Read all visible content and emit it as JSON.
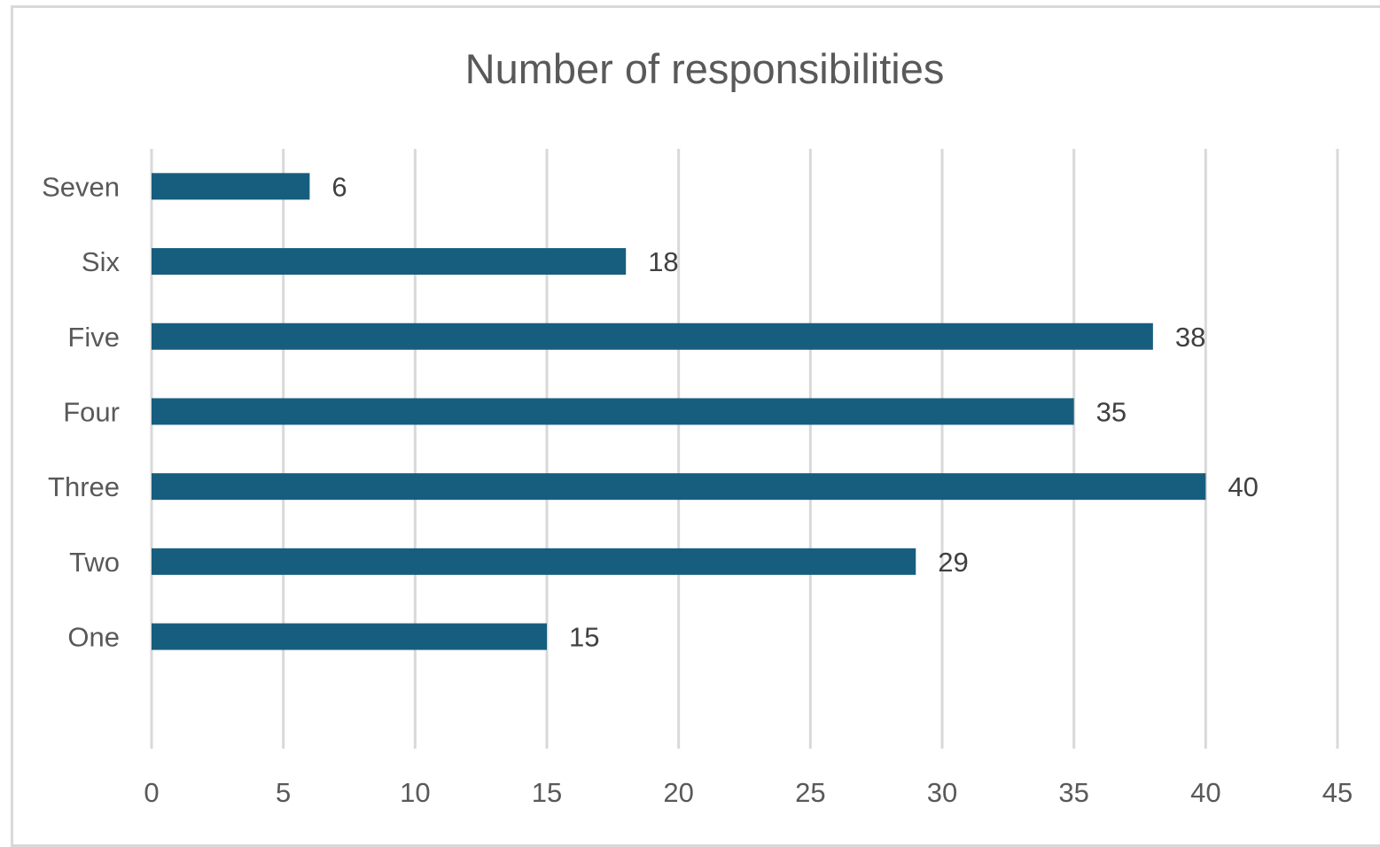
{
  "chart_data": {
    "type": "bar",
    "orientation": "horizontal",
    "title": "Number of responsibilities",
    "categories": [
      "Seven",
      "Six",
      "Five",
      "Four",
      "Three",
      "Two",
      "One"
    ],
    "values": [
      6,
      18,
      38,
      35,
      40,
      29,
      15
    ],
    "xlabel": "",
    "ylabel": "",
    "xlim": [
      0,
      45
    ],
    "xticks": [
      "0",
      "5",
      "10",
      "15",
      "20",
      "25",
      "30",
      "35",
      "40",
      "45"
    ],
    "grid": "vertical",
    "data_labels": true,
    "legend": "none",
    "colors": {
      "bar": "#175e7e",
      "grid": "#d9d9d9",
      "text": "#595959"
    }
  }
}
